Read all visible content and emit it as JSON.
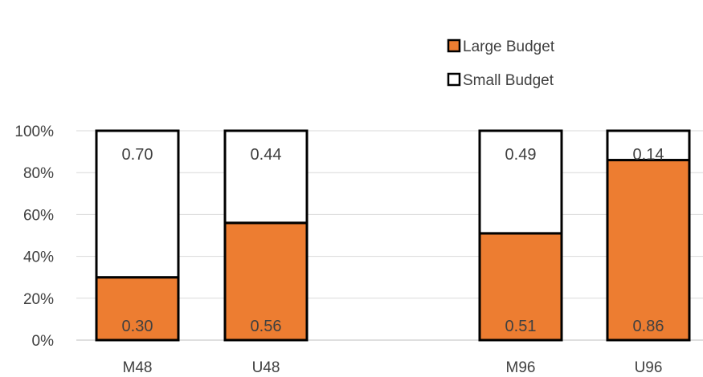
{
  "chart_data": {
    "type": "bar",
    "stacked": true,
    "normalized": true,
    "categories": [
      "M48",
      "U48",
      "M96",
      "U96"
    ],
    "series": [
      {
        "name": "Large Budget",
        "values": [
          0.3,
          0.56,
          0.51,
          0.86
        ],
        "labels": [
          "0.30",
          "0.56",
          "0.51",
          "0.86"
        ],
        "color": "#ED7D31"
      },
      {
        "name": "Small Budget",
        "values": [
          0.7,
          0.44,
          0.49,
          0.14
        ],
        "labels": [
          "0.70",
          "0.44",
          "0.49",
          "0.14"
        ],
        "color": "#FFFFFF"
      }
    ],
    "y_ticks": [
      "0%",
      "20%",
      "40%",
      "60%",
      "80%",
      "100%"
    ],
    "ylim": [
      0,
      1
    ],
    "grid": true,
    "legend_position": "top-right",
    "legend_order": [
      "Large Budget",
      "Small Budget"
    ],
    "title": "",
    "xlabel": "",
    "ylabel": ""
  }
}
